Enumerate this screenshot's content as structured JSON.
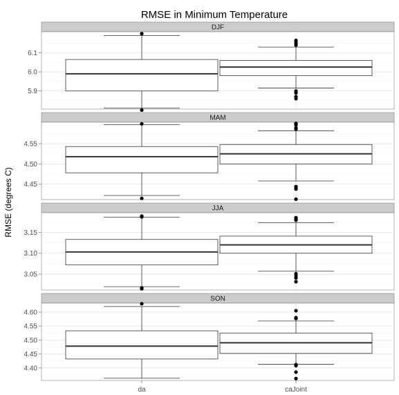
{
  "chart_data": {
    "type": "boxplot",
    "title": "RMSE in Minimum Temperature",
    "xlabel": "",
    "ylabel": "RMSE (degrees C)",
    "categories": [
      "da",
      "caJoint"
    ],
    "grid": true,
    "facets": [
      {
        "label": "DJF",
        "ylim": [
          5.805,
          6.21
        ],
        "yticks": [
          "5.9",
          "6.0",
          "6.1"
        ],
        "ytick_values": [
          5.9,
          6.0,
          6.1
        ],
        "boxes": [
          {
            "category": "da",
            "whisker_low": 5.81,
            "q1": 5.9,
            "median": 5.99,
            "q3": 6.065,
            "whisker_high": 6.19,
            "outliers": [
              5.8,
              6.2
            ]
          },
          {
            "category": "caJoint",
            "whisker_low": 5.915,
            "q1": 5.98,
            "median": 6.025,
            "q3": 6.06,
            "whisker_high": 6.13,
            "outliers": [
              5.86,
              5.87,
              5.89,
              5.9,
              6.14,
              6.15,
              6.16,
              6.165
            ]
          }
        ]
      },
      {
        "label": "MAM",
        "ylim": [
          4.412,
          4.603
        ],
        "yticks": [
          "4.45",
          "4.50",
          "4.55"
        ],
        "ytick_values": [
          4.45,
          4.5,
          4.55
        ],
        "boxes": [
          {
            "category": "da",
            "whisker_low": 4.422,
            "q1": 4.478,
            "median": 4.518,
            "q3": 4.543,
            "whisker_high": 4.597,
            "outliers": [
              4.415,
              4.599
            ]
          },
          {
            "category": "caJoint",
            "whisker_low": 4.458,
            "q1": 4.5,
            "median": 4.525,
            "q3": 4.548,
            "whisker_high": 4.582,
            "outliers": [
              4.413,
              4.438,
              4.441,
              4.444,
              4.586,
              4.589,
              4.596,
              4.6
            ]
          }
        ]
      },
      {
        "label": "JJA",
        "ylim": [
          3.012,
          3.197
        ],
        "yticks": [
          "3.05",
          "3.10",
          "3.15"
        ],
        "ytick_values": [
          3.05,
          3.1,
          3.15
        ],
        "boxes": [
          {
            "category": "da",
            "whisker_low": 3.02,
            "q1": 3.072,
            "median": 3.103,
            "q3": 3.133,
            "whisker_high": 3.186,
            "outliers": [
              3.015,
              3.017,
              3.187,
              3.189
            ]
          },
          {
            "category": "caJoint",
            "whisker_low": 3.057,
            "q1": 3.1,
            "median": 3.12,
            "q3": 3.141,
            "whisker_high": 3.173,
            "outliers": [
              3.032,
              3.041,
              3.046,
              3.051,
              3.179,
              3.182,
              3.185
            ]
          }
        ]
      },
      {
        "label": "SON",
        "ylim": [
          4.355,
          4.632
        ],
        "yticks": [
          "4.40",
          "4.45",
          "4.50",
          "4.55",
          "4.60"
        ],
        "ytick_values": [
          4.4,
          4.45,
          4.5,
          4.55,
          4.6
        ],
        "boxes": [
          {
            "category": "da",
            "whisker_low": 4.363,
            "q1": 4.432,
            "median": 4.478,
            "q3": 4.533,
            "whisker_high": 4.62,
            "outliers": [
              4.63
            ]
          },
          {
            "category": "caJoint",
            "whisker_low": 4.413,
            "q1": 4.452,
            "median": 4.49,
            "q3": 4.525,
            "whisker_high": 4.568,
            "outliers": [
              4.362,
              4.385,
              4.408,
              4.412,
              4.577,
              4.58,
              4.605
            ]
          }
        ]
      }
    ]
  }
}
